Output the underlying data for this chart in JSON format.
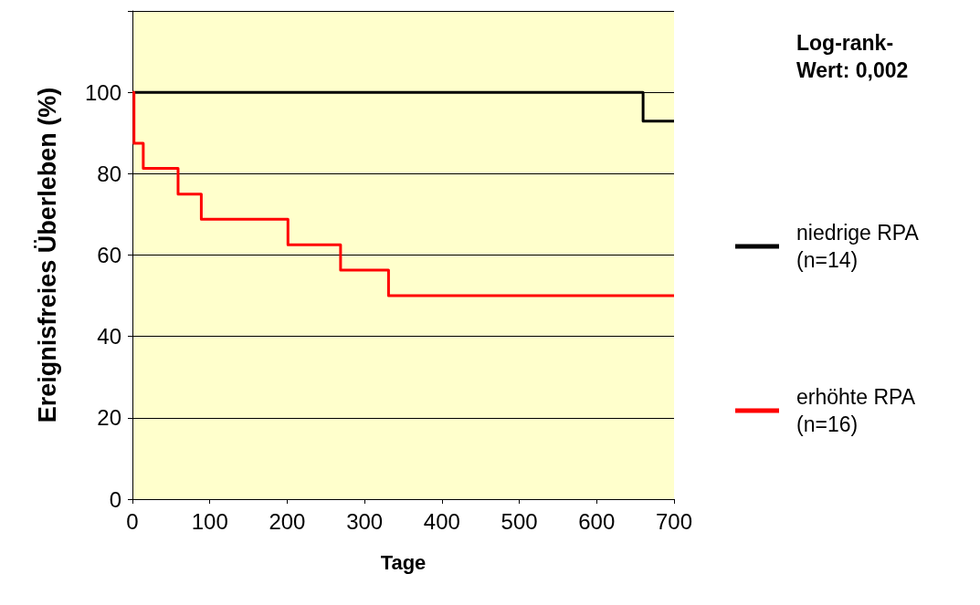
{
  "chart_data": {
    "type": "step",
    "xlabel": "Tage",
    "ylabel": "Ereignisfreies Überleben (%)",
    "annotations": [
      "Log-rank-\nWert: 0,002"
    ],
    "xlim": [
      0,
      700
    ],
    "xticks": [
      0,
      100,
      200,
      300,
      400,
      500,
      600,
      700
    ],
    "ylim": [
      0,
      120
    ],
    "yticks": [
      0,
      20,
      40,
      60,
      80,
      100,
      {
        "value": 120,
        "label": null
      }
    ],
    "grid": "y",
    "legend": "right",
    "marker": "none",
    "line_style": "solid",
    "series": [
      {
        "name": "niedrige RPA\n(n=14)",
        "color": "#000000",
        "x": [
          0,
          660,
          700
        ],
        "values": [
          100,
          92.9,
          92.9
        ]
      },
      {
        "name": "erhöhte RPA\n(n=16)",
        "color": "#ff0000",
        "x": [
          0,
          2,
          14,
          59,
          89,
          201,
          269,
          331,
          700
        ],
        "values": [
          100,
          87.5,
          81.3,
          75,
          68.8,
          62.5,
          56.3,
          50,
          50
        ]
      }
    ]
  }
}
